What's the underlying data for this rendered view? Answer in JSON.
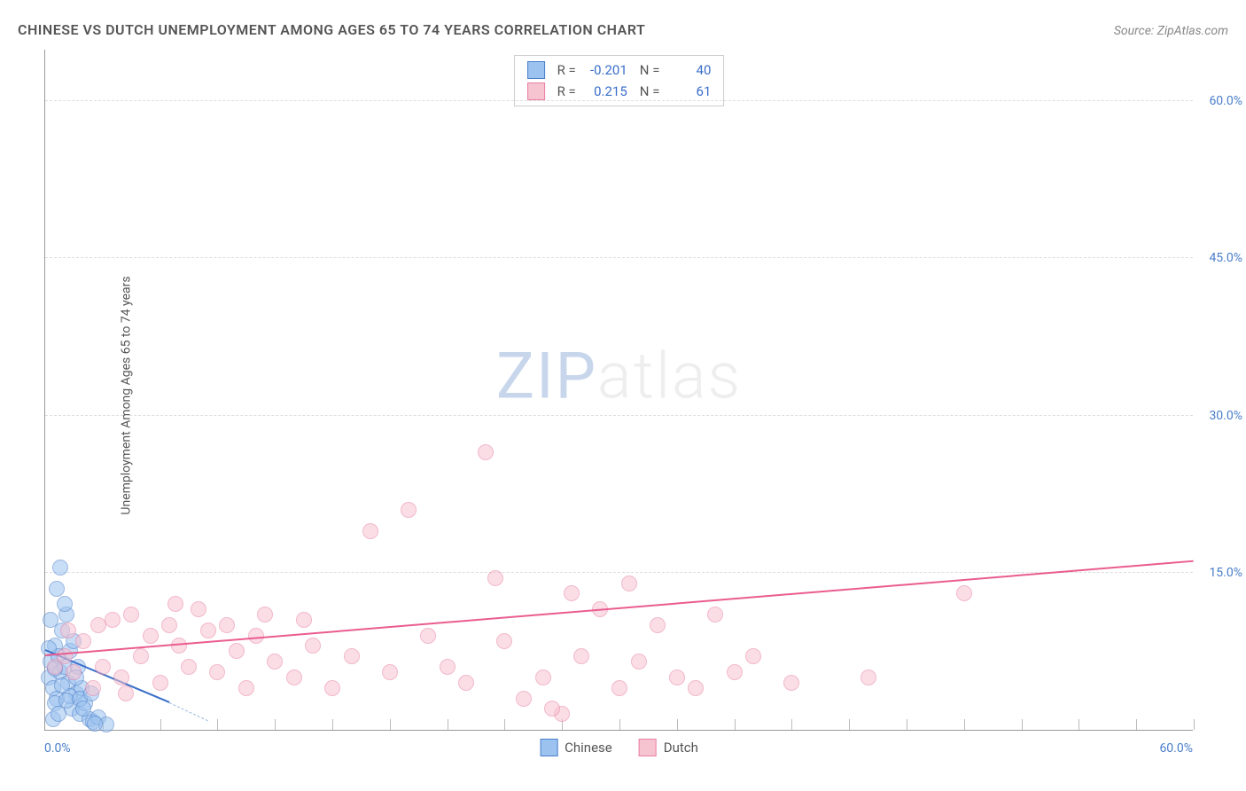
{
  "title": "CHINESE VS DUTCH UNEMPLOYMENT AMONG AGES 65 TO 74 YEARS CORRELATION CHART",
  "source_label": "Source: ZipAtlas.com",
  "y_axis_label": "Unemployment Among Ages 65 to 74 years",
  "watermark": {
    "part1": "ZIP",
    "part2": "atlas"
  },
  "chart": {
    "type": "scatter",
    "xlim": [
      0,
      60
    ],
    "ylim": [
      0,
      65
    ],
    "x_origin_label": "0.0%",
    "x_max_label": "60.0%",
    "y_ticks": [
      {
        "value": 15,
        "label": "15.0%"
      },
      {
        "value": 30,
        "label": "30.0%"
      },
      {
        "value": 45,
        "label": "45.0%"
      },
      {
        "value": 60,
        "label": "60.0%"
      }
    ],
    "x_minor_ticks": [
      3,
      6,
      9,
      12,
      15,
      18,
      21,
      24,
      27,
      30,
      33,
      36,
      39,
      42,
      45,
      48,
      51,
      54,
      57,
      60
    ],
    "grid_color": "#dddddd",
    "background_color": "#ffffff",
    "point_radius": 9,
    "point_opacity": 0.55,
    "series": [
      {
        "name": "Chinese",
        "fill": "#9cc3ef",
        "stroke": "#4a7ec9",
        "r_label": "R =",
        "r_value": "-0.201",
        "n_label": "N =",
        "n_value": "40",
        "trend": {
          "x1": 0,
          "y1": 7.5,
          "x2": 6.5,
          "y2": 2.5,
          "color": "#3a6fc9",
          "dash_extend_x": 8.5,
          "dash_extend_y": 0.8,
          "dash_color": "#9cb9e0"
        },
        "points": [
          [
            0.2,
            5.0
          ],
          [
            0.3,
            6.5
          ],
          [
            0.4,
            4.0
          ],
          [
            0.5,
            8.0
          ],
          [
            0.6,
            3.0
          ],
          [
            0.7,
            7.0
          ],
          [
            0.8,
            5.5
          ],
          [
            0.9,
            9.5
          ],
          [
            1.0,
            6.0
          ],
          [
            1.1,
            11.0
          ],
          [
            1.2,
            4.5
          ],
          [
            1.3,
            7.5
          ],
          [
            1.4,
            2.0
          ],
          [
            1.5,
            8.5
          ],
          [
            1.6,
            3.5
          ],
          [
            1.7,
            6.0
          ],
          [
            1.8,
            1.5
          ],
          [
            1.9,
            4.0
          ],
          [
            2.1,
            2.5
          ],
          [
            2.3,
            1.0
          ],
          [
            2.5,
            0.8
          ],
          [
            0.6,
            13.5
          ],
          [
            0.8,
            15.5
          ],
          [
            1.0,
            12.0
          ],
          [
            0.3,
            10.5
          ],
          [
            0.5,
            2.5
          ],
          [
            2.8,
            1.2
          ],
          [
            3.2,
            0.5
          ],
          [
            0.4,
            1.0
          ],
          [
            0.7,
            1.5
          ],
          [
            1.3,
            3.2
          ],
          [
            1.6,
            5.0
          ],
          [
            0.2,
            7.8
          ],
          [
            0.9,
            4.2
          ],
          [
            1.1,
            2.8
          ],
          [
            1.8,
            3.0
          ],
          [
            2.0,
            2.0
          ],
          [
            2.4,
            3.5
          ],
          [
            2.6,
            0.6
          ],
          [
            0.5,
            5.8
          ]
        ]
      },
      {
        "name": "Dutch",
        "fill": "#f6c3d1",
        "stroke": "#e97fa3",
        "r_label": "R =",
        "r_value": "0.215",
        "n_label": "N =",
        "n_value": "61",
        "trend": {
          "x1": 0,
          "y1": 7.0,
          "x2": 60,
          "y2": 16.0,
          "color": "#ea5c8f"
        },
        "points": [
          [
            0.5,
            6.0
          ],
          [
            1.0,
            7.0
          ],
          [
            1.5,
            5.5
          ],
          [
            2.0,
            8.5
          ],
          [
            2.5,
            4.0
          ],
          [
            3.0,
            6.0
          ],
          [
            3.5,
            10.5
          ],
          [
            4.0,
            5.0
          ],
          [
            4.5,
            11.0
          ],
          [
            5.0,
            7.0
          ],
          [
            5.5,
            9.0
          ],
          [
            6.0,
            4.5
          ],
          [
            6.5,
            10.0
          ],
          [
            7.0,
            8.0
          ],
          [
            7.5,
            6.0
          ],
          [
            8.0,
            11.5
          ],
          [
            8.5,
            9.5
          ],
          [
            9.0,
            5.5
          ],
          [
            9.5,
            10.0
          ],
          [
            10.0,
            7.5
          ],
          [
            10.5,
            4.0
          ],
          [
            11.0,
            9.0
          ],
          [
            12.0,
            6.5
          ],
          [
            13.0,
            5.0
          ],
          [
            14.0,
            8.0
          ],
          [
            15.0,
            4.0
          ],
          [
            16.0,
            7.0
          ],
          [
            17.0,
            19.0
          ],
          [
            18.0,
            5.5
          ],
          [
            19.0,
            21.0
          ],
          [
            20.0,
            9.0
          ],
          [
            21.0,
            6.0
          ],
          [
            22.0,
            4.5
          ],
          [
            23.0,
            26.5
          ],
          [
            23.5,
            14.5
          ],
          [
            24.0,
            8.5
          ],
          [
            25.0,
            3.0
          ],
          [
            26.0,
            5.0
          ],
          [
            27.0,
            1.5
          ],
          [
            27.5,
            13.0
          ],
          [
            28.0,
            7.0
          ],
          [
            29.0,
            11.5
          ],
          [
            30.0,
            4.0
          ],
          [
            30.5,
            14.0
          ],
          [
            31.0,
            6.5
          ],
          [
            32.0,
            10.0
          ],
          [
            33.0,
            5.0
          ],
          [
            34.0,
            4.0
          ],
          [
            35.0,
            11.0
          ],
          [
            36.0,
            5.5
          ],
          [
            37.0,
            7.0
          ],
          [
            39.0,
            4.5
          ],
          [
            43.0,
            5.0
          ],
          [
            48.0,
            13.0
          ],
          [
            1.2,
            9.5
          ],
          [
            2.8,
            10.0
          ],
          [
            4.2,
            3.5
          ],
          [
            6.8,
            12.0
          ],
          [
            11.5,
            11.0
          ],
          [
            13.5,
            10.5
          ],
          [
            26.5,
            2.0
          ]
        ]
      }
    ]
  },
  "legend_bottom": [
    {
      "label": "Chinese",
      "fill": "#9cc3ef",
      "stroke": "#4a7ec9"
    },
    {
      "label": "Dutch",
      "fill": "#f6c3d1",
      "stroke": "#e97fa3"
    }
  ]
}
